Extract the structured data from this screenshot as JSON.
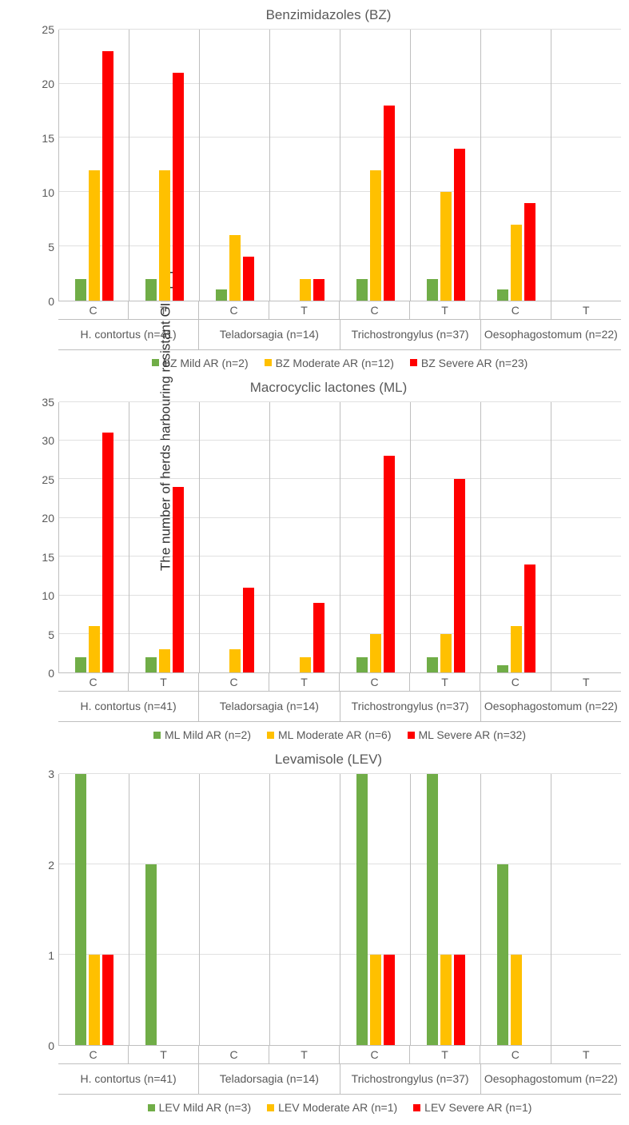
{
  "y_axis_label": "The number of herds harbouring resistant GIN population",
  "colors": {
    "mild": "#70ad47",
    "moderate": "#ffc000",
    "severe": "#ff0000",
    "grid": "#e0e0e0",
    "axis": "#bfbfbf",
    "text": "#595959"
  },
  "species": [
    {
      "label": "H. contortus (n=41)"
    },
    {
      "label": "Teladorsagia (n=14)"
    },
    {
      "label": "Trichostrongylus (n=37)"
    },
    {
      "label": "Oesophagostomum (n=22)"
    }
  ],
  "ct_labels": [
    "C",
    "T"
  ],
  "panels": [
    {
      "title": "Benzimidazoles (BZ)",
      "ymax": 25,
      "ytick_step": 5,
      "legend": [
        {
          "label": "BZ Mild AR (n=2)",
          "color_key": "mild"
        },
        {
          "label": "BZ Moderate AR (n=12)",
          "color_key": "moderate"
        },
        {
          "label": "BZ Severe AR (n=23)",
          "color_key": "severe"
        }
      ],
      "data": [
        {
          "c": [
            2,
            12,
            23
          ],
          "t": [
            2,
            12,
            21
          ]
        },
        {
          "c": [
            1,
            6,
            4
          ],
          "t": [
            0,
            2,
            2
          ]
        },
        {
          "c": [
            2,
            12,
            18
          ],
          "t": [
            2,
            10,
            14
          ]
        },
        {
          "c": [
            1,
            7,
            9
          ],
          "t": [
            0,
            0,
            0
          ]
        }
      ]
    },
    {
      "title": "Macrocyclic lactones (ML)",
      "ymax": 35,
      "ytick_step": 5,
      "legend": [
        {
          "label": "ML Mild AR (n=2)",
          "color_key": "mild"
        },
        {
          "label": "ML Moderate AR (n=6)",
          "color_key": "moderate"
        },
        {
          "label": "ML Severe AR (n=32)",
          "color_key": "severe"
        }
      ],
      "data": [
        {
          "c": [
            2,
            6,
            31
          ],
          "t": [
            2,
            3,
            24
          ]
        },
        {
          "c": [
            0,
            3,
            11
          ],
          "t": [
            0,
            2,
            9
          ]
        },
        {
          "c": [
            2,
            5,
            28
          ],
          "t": [
            2,
            5,
            25
          ]
        },
        {
          "c": [
            1,
            6,
            14
          ],
          "t": [
            0,
            0,
            0
          ]
        }
      ]
    },
    {
      "title": "Levamisole (LEV)",
      "ymax": 3,
      "ytick_step": 1,
      "legend": [
        {
          "label": "LEV Mild AR (n=3)",
          "color_key": "mild"
        },
        {
          "label": "LEV Moderate AR (n=1)",
          "color_key": "moderate"
        },
        {
          "label": "LEV Severe AR (n=1)",
          "color_key": "severe"
        }
      ],
      "data": [
        {
          "c": [
            3,
            1,
            1
          ],
          "t": [
            2,
            0,
            0
          ]
        },
        {
          "c": [
            0,
            0,
            0
          ],
          "t": [
            0,
            0,
            0
          ]
        },
        {
          "c": [
            3,
            1,
            1
          ],
          "t": [
            3,
            1,
            1
          ]
        },
        {
          "c": [
            2,
            1,
            0
          ],
          "t": [
            0,
            0,
            0
          ]
        }
      ]
    }
  ]
}
